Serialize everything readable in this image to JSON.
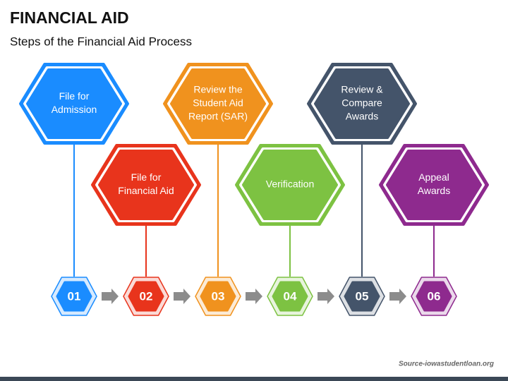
{
  "header": {
    "title": "FINANCIAL AID",
    "subtitle": "Steps of the Financial Aid Process"
  },
  "steps": [
    {
      "number": "01",
      "label": [
        "File for",
        "Admission"
      ],
      "color": "#1a8cff"
    },
    {
      "number": "02",
      "label": [
        "File for",
        "Financial Aid"
      ],
      "color": "#e8341c"
    },
    {
      "number": "03",
      "label": [
        "Review the",
        "Student Aid",
        "Report (SAR)"
      ],
      "color": "#f0921e"
    },
    {
      "number": "04",
      "label": [
        "Verification"
      ],
      "color": "#7dc242"
    },
    {
      "number": "05",
      "label": [
        "Review &",
        "Compare",
        "Awards"
      ],
      "color": "#44546a"
    },
    {
      "number": "06",
      "label": [
        "Appeal",
        "Awards"
      ],
      "color": "#8e2a8e"
    }
  ],
  "source": "Source-iowastudentloan.org"
}
